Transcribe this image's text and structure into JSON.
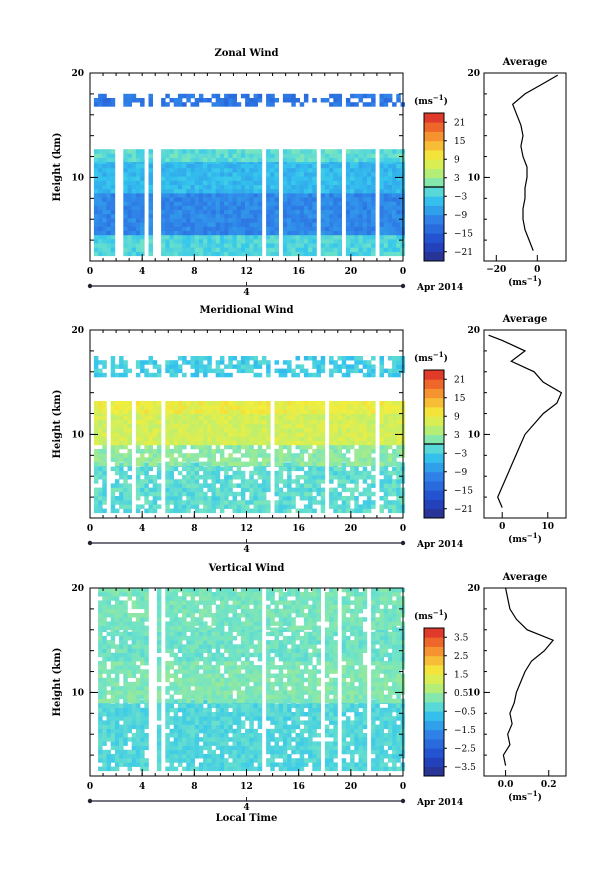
{
  "chart_data": [
    {
      "type": "heatmap",
      "title": "Zonal Wind",
      "ylabel": "Height (km)",
      "xlabel": "",
      "x_ticks": [
        "0",
        "4",
        "8",
        "12",
        "16",
        "20",
        "0"
      ],
      "y_ticks": [
        "20",
        "10"
      ],
      "xlim": [
        0,
        24
      ],
      "ylim": [
        2,
        20
      ],
      "date_axis": {
        "day_label": "4",
        "date_text": "Apr 2014"
      },
      "colorbar": {
        "unit": "(ms",
        "unit_sup": "−1",
        "unit_close": ")",
        "ticks": [
          "21",
          "15",
          "9",
          "3",
          "−3",
          "−9",
          "−15",
          "−21"
        ],
        "range": [
          -24,
          24
        ]
      },
      "zero_line_value": 0,
      "field": {
        "height_bands_km": [
          [
            2.5,
            4.5
          ],
          [
            4.5,
            8.5
          ],
          [
            8.5,
            11.5
          ],
          [
            11.5,
            12.5
          ],
          [
            16.8,
            17.8
          ]
        ],
        "values_ms": [
          -2,
          -10,
          -5,
          -1,
          -12
        ]
      },
      "average_profile": {
        "title": "Average",
        "x_ticks": [
          "−20",
          "0"
        ],
        "y_ticks": [
          "20",
          "10"
        ],
        "xlim": [
          -26,
          14
        ],
        "unit": "(ms",
        "unit_sup": "−1",
        "unit_close": ")",
        "height_km": [
          3,
          4,
          5,
          6,
          7,
          8,
          9,
          10,
          11,
          12,
          13,
          14,
          15,
          16,
          17,
          18,
          19,
          19.8
        ],
        "values_ms": [
          -2,
          -4,
          -6,
          -7,
          -7,
          -6,
          -6,
          -5,
          -5,
          -7,
          -8,
          -7,
          -8,
          -10,
          -12,
          -6,
          3,
          10
        ]
      }
    },
    {
      "type": "heatmap",
      "title": "Meridional Wind",
      "ylabel": "Height (km)",
      "xlabel": "",
      "x_ticks": [
        "0",
        "4",
        "8",
        "12",
        "16",
        "20",
        "0"
      ],
      "y_ticks": [
        "20",
        "10"
      ],
      "xlim": [
        0,
        24
      ],
      "ylim": [
        2,
        20
      ],
      "date_axis": {
        "day_label": "4",
        "date_text": "Apr 2014"
      },
      "colorbar": {
        "unit": "(ms",
        "unit_sup": "−1",
        "unit_close": ")",
        "ticks": [
          "21",
          "15",
          "9",
          "3",
          "−3",
          "−9",
          "−15",
          "−21"
        ],
        "range": [
          -24,
          24
        ]
      },
      "zero_line_value": 0,
      "field": {
        "height_bands_km": [
          [
            2.5,
            7
          ],
          [
            7,
            9
          ],
          [
            9,
            12
          ],
          [
            12,
            13
          ],
          [
            15.5,
            17.2
          ]
        ],
        "values_ms": [
          -1,
          2,
          7,
          9,
          -3
        ]
      },
      "average_profile": {
        "title": "Average",
        "x_ticks": [
          "0",
          "10"
        ],
        "y_ticks": [
          "20",
          "10"
        ],
        "xlim": [
          -4,
          14
        ],
        "unit": "(ms",
        "unit_sup": "−1",
        "unit_close": ")",
        "height_km": [
          3,
          4,
          5,
          6,
          7,
          8,
          9,
          10,
          11,
          12,
          13,
          14,
          15,
          16,
          17,
          18,
          19,
          19.5
        ],
        "values_ms": [
          0,
          -1,
          0,
          1,
          2,
          3,
          4,
          5,
          7,
          9,
          12,
          13,
          9,
          7,
          2,
          5,
          0,
          -3
        ]
      }
    },
    {
      "type": "heatmap",
      "title": "Vertical Wind",
      "ylabel": "Height (km)",
      "xlabel": "Local Time",
      "x_ticks": [
        "0",
        "4",
        "8",
        "12",
        "16",
        "20",
        "0"
      ],
      "y_ticks": [
        "20",
        "10"
      ],
      "xlim": [
        0,
        24
      ],
      "ylim": [
        2,
        20
      ],
      "date_axis": {
        "day_label": "4",
        "date_text": "Apr 2014"
      },
      "colorbar": {
        "unit": "(ms",
        "unit_sup": "−1",
        "unit_close": ")",
        "ticks": [
          "3.5",
          "2.5",
          "1.5",
          "0.5",
          "−0.5",
          "−1.5",
          "−2.5",
          "−3.5"
        ],
        "range": [
          -4,
          4
        ]
      },
      "field": {
        "height_bands_km": [
          [
            2.5,
            9
          ],
          [
            9,
            13
          ],
          [
            13,
            16
          ],
          [
            16,
            20
          ]
        ],
        "values_ms": [
          -0.3,
          0.2,
          0.0,
          0.1
        ]
      },
      "average_profile": {
        "title": "Average",
        "x_ticks": [
          "0.0",
          "0.2"
        ],
        "y_ticks": [
          "20",
          "10"
        ],
        "xlim": [
          -0.1,
          0.28
        ],
        "unit": "(ms",
        "unit_sup": "−1",
        "unit_close": ")",
        "height_km": [
          3,
          4,
          5,
          6,
          7,
          8,
          9,
          10,
          11,
          12,
          13,
          14,
          15,
          16,
          17,
          18,
          19,
          20
        ],
        "values_ms": [
          0.0,
          -0.01,
          0.02,
          0.01,
          0.03,
          0.02,
          0.04,
          0.05,
          0.07,
          0.09,
          0.12,
          0.18,
          0.22,
          0.1,
          0.05,
          0.02,
          0.01,
          0.0
        ]
      }
    }
  ]
}
